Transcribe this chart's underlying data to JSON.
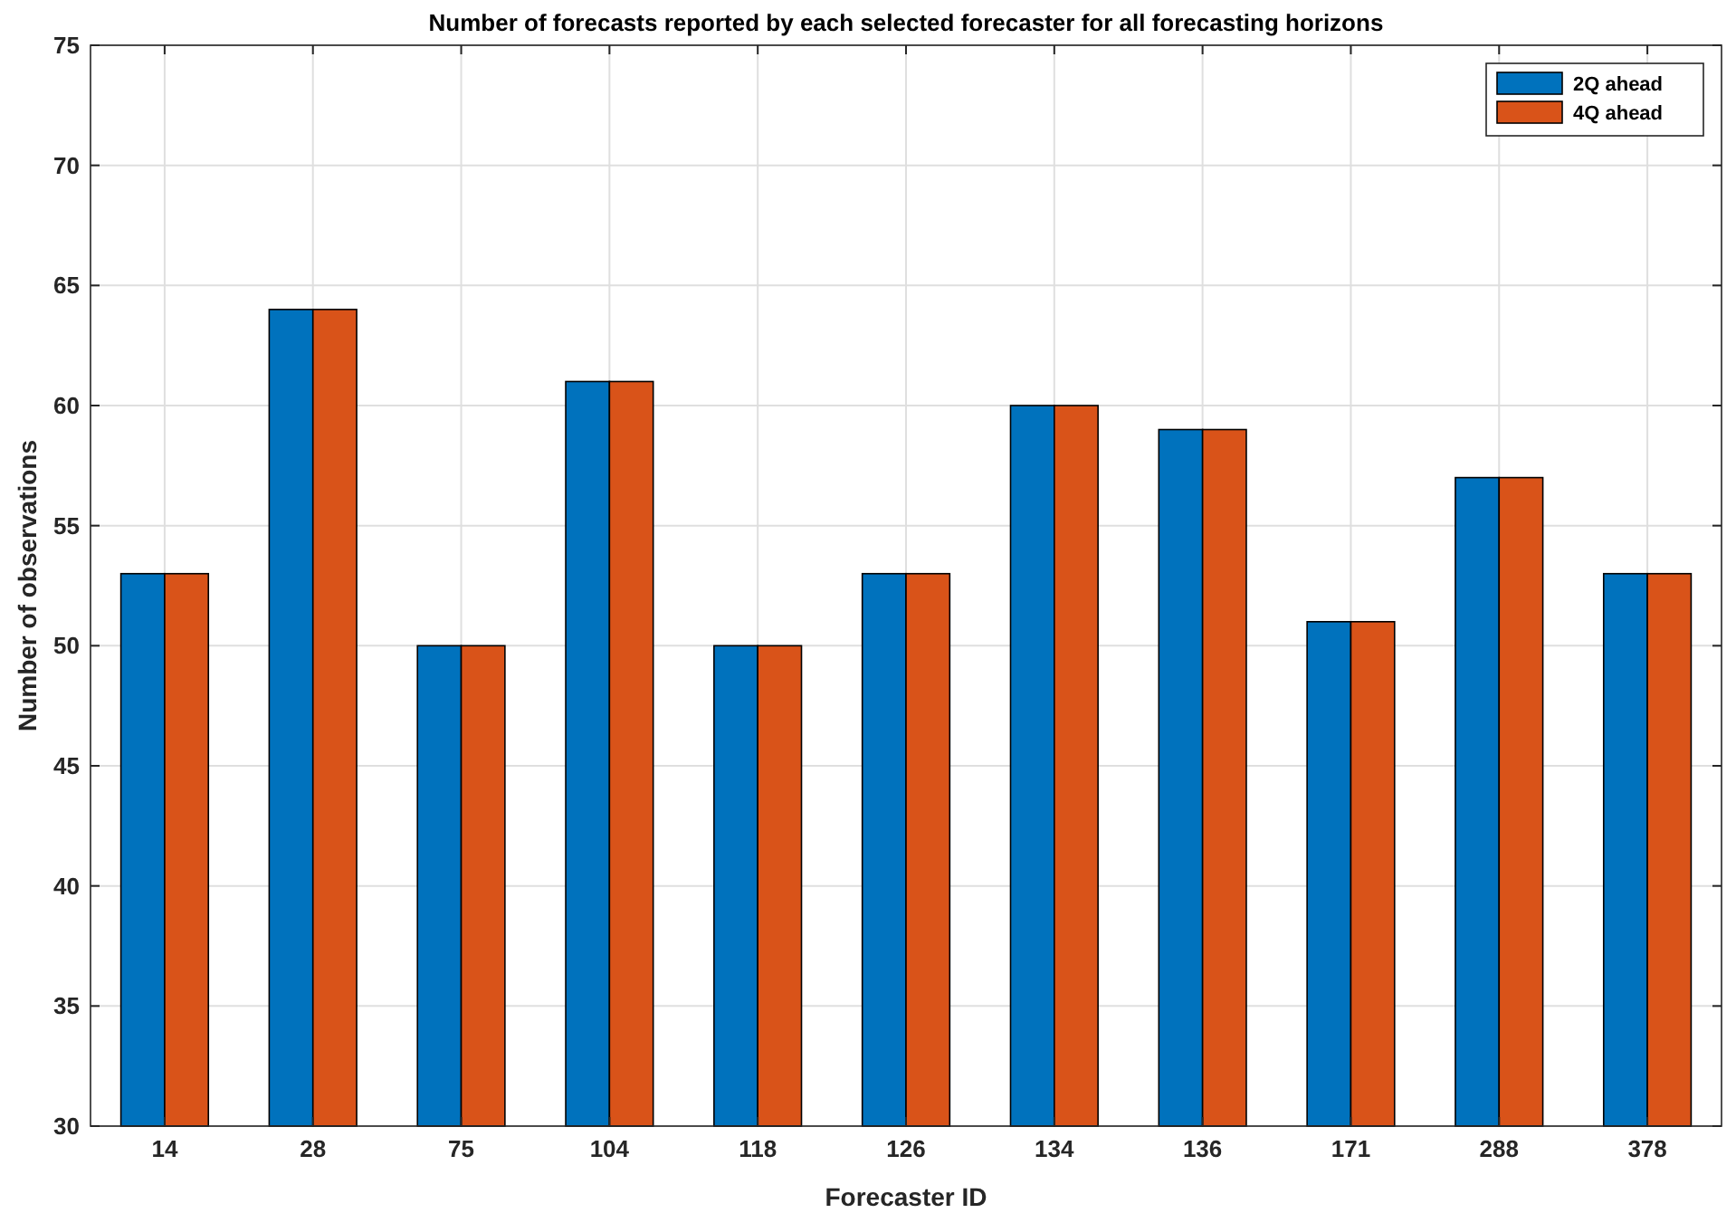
{
  "chart_data": {
    "type": "bar",
    "title": "Number of forecasts reported by each selected forecaster for all forecasting horizons",
    "xlabel": "Forecaster ID",
    "ylabel": "Number of observations",
    "categories": [
      "14",
      "28",
      "75",
      "104",
      "118",
      "126",
      "134",
      "136",
      "171",
      "288",
      "378"
    ],
    "series": [
      {
        "name": "2Q ahead",
        "color": "#0072bd",
        "values": [
          53,
          64,
          50,
          61,
          50,
          53,
          60,
          59,
          51,
          57,
          53
        ]
      },
      {
        "name": "4Q ahead",
        "color": "#d95319",
        "values": [
          53,
          64,
          50,
          61,
          50,
          53,
          60,
          59,
          51,
          57,
          53
        ]
      }
    ],
    "ylim": [
      30,
      75
    ],
    "yticks": [
      30,
      35,
      40,
      45,
      50,
      55,
      60,
      65,
      70,
      75
    ],
    "grid": true,
    "legend": "top right"
  }
}
